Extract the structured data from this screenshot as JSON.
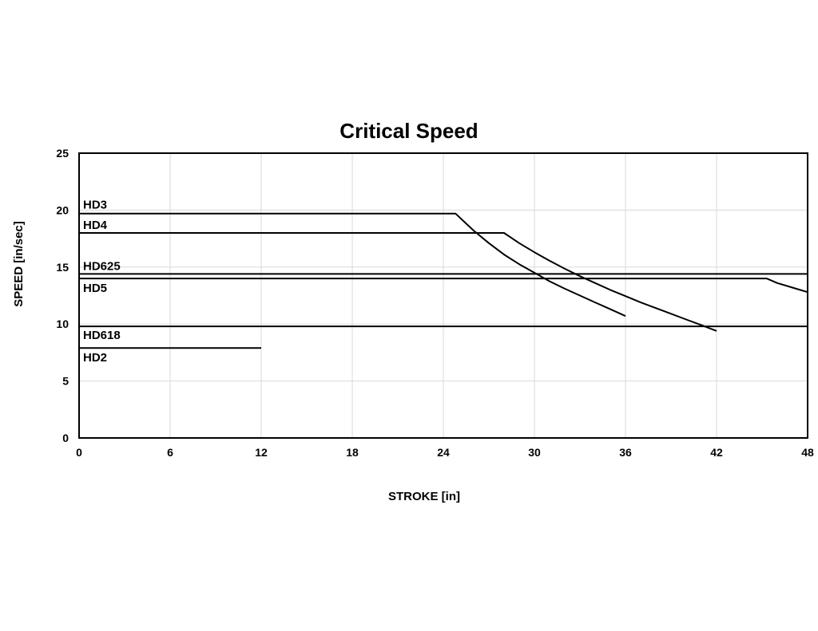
{
  "chart_data": {
    "type": "line",
    "title": "Critical Speed",
    "xlabel": "STROKE [in]",
    "ylabel": "SPEED [in/sec]",
    "xlim": [
      0,
      48
    ],
    "ylim": [
      0,
      25
    ],
    "x_ticks": [
      "0",
      "6",
      "12",
      "18",
      "24",
      "30",
      "36",
      "42",
      "48"
    ],
    "y_ticks": [
      "0",
      "5",
      "10",
      "15",
      "20",
      "25"
    ],
    "grid": true,
    "legend": "none",
    "series": [
      {
        "name": "HD3",
        "points": [
          [
            0,
            19.7
          ],
          [
            24.8,
            19.7
          ],
          [
            26,
            18.2
          ],
          [
            27,
            17.1
          ],
          [
            28,
            16.1
          ],
          [
            29,
            15.25
          ],
          [
            30,
            14.5
          ],
          [
            31,
            13.75
          ],
          [
            32,
            13.1
          ],
          [
            33,
            12.5
          ],
          [
            34,
            11.9
          ],
          [
            35,
            11.3
          ],
          [
            36,
            10.7
          ]
        ]
      },
      {
        "name": "HD4",
        "points": [
          [
            0,
            18.0
          ],
          [
            28,
            18.0
          ],
          [
            29,
            17.1
          ],
          [
            30,
            16.3
          ],
          [
            31,
            15.55
          ],
          [
            32,
            14.85
          ],
          [
            33,
            14.2
          ],
          [
            34,
            13.6
          ],
          [
            35,
            13.0
          ],
          [
            36,
            12.45
          ],
          [
            37,
            11.9
          ],
          [
            38,
            11.4
          ],
          [
            39,
            10.9
          ],
          [
            40,
            10.4
          ],
          [
            41,
            9.9
          ],
          [
            42,
            9.4
          ]
        ]
      },
      {
        "name": "HD625",
        "points": [
          [
            0,
            14.4
          ],
          [
            48,
            14.4
          ]
        ]
      },
      {
        "name": "HD5",
        "points": [
          [
            0,
            14.0
          ],
          [
            45.3,
            14.0
          ],
          [
            46,
            13.6
          ],
          [
            47,
            13.2
          ],
          [
            48,
            12.8
          ]
        ]
      },
      {
        "name": "HD618",
        "points": [
          [
            0,
            9.8
          ],
          [
            48,
            9.8
          ]
        ]
      },
      {
        "name": "HD2",
        "points": [
          [
            0,
            7.9
          ],
          [
            12,
            7.9
          ]
        ]
      }
    ]
  }
}
